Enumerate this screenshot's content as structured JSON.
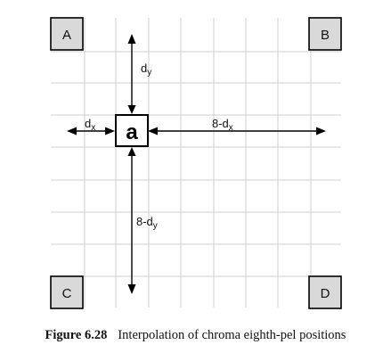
{
  "corners": {
    "a": "A",
    "b": "B",
    "c": "C",
    "d": "D"
  },
  "center": "a",
  "labels": {
    "dy": {
      "main": "d",
      "sub": "y"
    },
    "dx": {
      "main": "d",
      "sub": "x"
    },
    "eight_minus_dx": {
      "main": "8-d",
      "sub": "x"
    },
    "eight_minus_dy": {
      "main": "8-d",
      "sub": "y"
    }
  },
  "caption": {
    "number": "Figure 6.28",
    "text": "Interpolation of chroma eighth-pel positions"
  }
}
